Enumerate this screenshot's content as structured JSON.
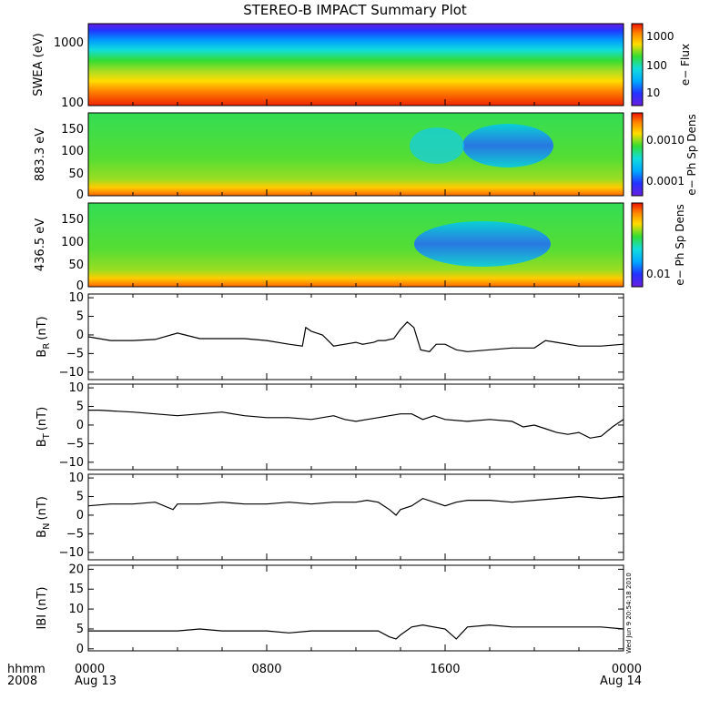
{
  "figure": {
    "title": "STEREO-B IMPACT Summary Plot",
    "stamp": "Wed Jun  9 20:54:18 2010",
    "time_label_1": "hhmm",
    "time_label_2": "2008"
  },
  "chart_data": [
    {
      "type": "heatmap",
      "name": "swea",
      "ylabel": "SWEA (eV)",
      "colorbar_label": "e− Flux",
      "y_scale": "log",
      "ylim": [
        95,
        2000
      ],
      "yticks": [
        "1000",
        "100"
      ],
      "colorbar_ticks": [
        "1000",
        "100",
        "10"
      ]
    },
    {
      "type": "heatmap",
      "name": "pad-883",
      "ylabel": "883.3 eV",
      "colorbar_label": "e− Ph Sp Dens",
      "ylim": [
        0,
        180
      ],
      "yticks": [
        "150",
        "100",
        "50",
        "0"
      ],
      "colorbar_ticks": [
        "0.0010",
        "0.0001"
      ]
    },
    {
      "type": "heatmap",
      "name": "pad-436",
      "ylabel": "436.5 eV",
      "colorbar_label": "e− Ph Sp Dens",
      "ylim": [
        0,
        180
      ],
      "yticks": [
        "150",
        "100",
        "50",
        "0"
      ],
      "colorbar_ticks": [
        "0.01"
      ]
    },
    {
      "type": "line",
      "name": "br",
      "ylabel": "B",
      "ylabel_sub": "R",
      "ylabel_unit": "(nT)",
      "ylim": [
        -12,
        11
      ],
      "yticks": [
        "10",
        "5",
        "0",
        "−5",
        "−10"
      ],
      "x": [
        0,
        1,
        2,
        3,
        4,
        5,
        6,
        7,
        8,
        9,
        9.6,
        9.75,
        10,
        10.5,
        11,
        11.5,
        12,
        12.3,
        12.8,
        13,
        13.3,
        13.7,
        14,
        14.3,
        14.6,
        14.9,
        15.3,
        15.6,
        16,
        16.5,
        17,
        18,
        19,
        20,
        20.5,
        21,
        22,
        23,
        24
      ],
      "y": [
        -0.5,
        -1.5,
        -1.5,
        -1.2,
        0.5,
        -1,
        -1,
        -1,
        -1.5,
        -2.5,
        -3,
        2,
        1,
        0,
        -3,
        -2.5,
        -2,
        -2.5,
        -2,
        -1.5,
        -1.5,
        -1,
        1.5,
        3.5,
        2,
        -4,
        -4.5,
        -2.5,
        -2.5,
        -4,
        -4.5,
        -4,
        -3.5,
        -3.5,
        -1.5,
        -2,
        -3,
        -3,
        -2.5
      ]
    },
    {
      "type": "line",
      "name": "bt",
      "ylabel": "B",
      "ylabel_sub": "T",
      "ylabel_unit": "(nT)",
      "ylim": [
        -12,
        11
      ],
      "yticks": [
        "10",
        "5",
        "0",
        "−5",
        "−10"
      ],
      "x": [
        0,
        0.5,
        1,
        2,
        3,
        4,
        5,
        6,
        7,
        8,
        9,
        10,
        11,
        11.5,
        12,
        12.5,
        13,
        13.5,
        14,
        14.5,
        15,
        15.5,
        16,
        17,
        18,
        19,
        19.5,
        20,
        20.5,
        21,
        21.5,
        22,
        22.5,
        23,
        23.5,
        24
      ],
      "y": [
        4,
        4,
        3.8,
        3.5,
        3,
        2.5,
        3,
        3.5,
        2.5,
        2,
        2,
        1.5,
        2.5,
        1.5,
        1,
        1.5,
        2,
        2.5,
        3,
        3,
        1.5,
        2.5,
        1.5,
        1,
        1.5,
        1,
        -0.5,
        0,
        -1,
        -2,
        -2.5,
        -2,
        -3.5,
        -3,
        -0.5,
        1.5
      ]
    },
    {
      "type": "line",
      "name": "bn",
      "ylabel": "B",
      "ylabel_sub": "N",
      "ylabel_unit": "(nT)",
      "ylim": [
        -12,
        11
      ],
      "yticks": [
        "10",
        "5",
        "0",
        "−5",
        "−10"
      ],
      "x": [
        0,
        1,
        2,
        3,
        3.8,
        4,
        5,
        6,
        7,
        8,
        9,
        10,
        11,
        12,
        12.5,
        13,
        13.5,
        13.8,
        14,
        14.5,
        15,
        16,
        16.5,
        17,
        18,
        19,
        20,
        21,
        22,
        23,
        24
      ],
      "y": [
        2.5,
        3,
        3,
        3.5,
        1.5,
        3,
        3,
        3.5,
        3,
        3,
        3.5,
        3,
        3.5,
        3.5,
        4,
        3.5,
        1.5,
        0,
        1.5,
        2.5,
        4.5,
        2.5,
        3.5,
        4,
        4,
        3.5,
        4,
        4.5,
        5,
        4.5,
        5
      ]
    },
    {
      "type": "line",
      "name": "bmag",
      "ylabel": "IBI",
      "ylabel_unit": "(nT)",
      "ylim": [
        -0.5,
        21
      ],
      "yticks": [
        "20",
        "15",
        "10",
        "5",
        "0"
      ],
      "x": [
        0,
        1,
        2,
        3,
        4,
        5,
        6,
        7,
        8,
        9,
        10,
        11,
        12,
        13,
        13.5,
        13.8,
        14,
        14.5,
        15,
        16,
        16.5,
        17,
        18,
        19,
        20,
        21,
        22,
        23,
        24
      ],
      "y": [
        4.5,
        4.5,
        4.5,
        4.5,
        4.5,
        5,
        4.5,
        4.5,
        4.5,
        4,
        4.5,
        4.5,
        4.5,
        4.5,
        3,
        2.5,
        3.5,
        5.5,
        6,
        5,
        2.5,
        5.5,
        6,
        5.5,
        5.5,
        5.5,
        5.5,
        5.5,
        5
      ]
    }
  ],
  "xaxis": {
    "range_hours": [
      0,
      24
    ],
    "ticks": [
      {
        "hour": 0,
        "label": "0000",
        "date": "Aug 13"
      },
      {
        "hour": 8,
        "label": "0800",
        "date": ""
      },
      {
        "hour": 16,
        "label": "1600",
        "date": ""
      },
      {
        "hour": 24,
        "label": "0000",
        "date": "Aug 14"
      }
    ]
  }
}
